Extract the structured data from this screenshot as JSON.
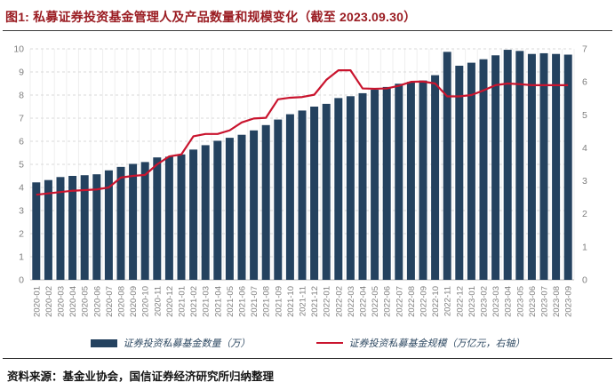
{
  "header": {
    "title": "图1: 私募证券投资基金管理人及产品数量和规模变化（截至 2023.09.30）"
  },
  "footer": {
    "source": "资料来源：基金业协会，国信证券经济研究所归纳整理"
  },
  "legend": {
    "items": [
      {
        "label": "证券投资私募基金数量（万）",
        "type": "bar",
        "color": "#24425f"
      },
      {
        "label": "证券投资私募基金规模（万亿元，右轴）",
        "type": "line",
        "color": "#c9142e"
      }
    ]
  },
  "colors": {
    "bar": "#24425f",
    "line": "#c9142e",
    "title": "#9a1c22",
    "axis_text": "#7f7f7f",
    "grid_h": "#d9d9d9",
    "grid_v": "#efefef",
    "baseline": "#bdbdbd"
  },
  "chart_data": {
    "type": "bar+line combo",
    "title": "私募证券投资基金管理人及产品数量和规模变化（截至 2023.09.30）",
    "grid": "horizontal dashed + faint vertical",
    "legend_position": "bottom",
    "categories": [
      "2020-01",
      "2020-02",
      "2020-03",
      "2020-04",
      "2020-05",
      "2020-06",
      "2020-07",
      "2020-08",
      "2020-09",
      "2020-10",
      "2020-11",
      "2020-12",
      "2021-01",
      "2021-02",
      "2021-03",
      "2021-04",
      "2021-05",
      "2021-06",
      "2021-07",
      "2021-08",
      "2021-09",
      "2021-10",
      "2021-11",
      "2021-12",
      "2022-01",
      "2022-02",
      "2022-03",
      "2022-04",
      "2022-05",
      "2022-06",
      "2022-07",
      "2022-08",
      "2022-09",
      "2022-10",
      "2022-11",
      "2022-12",
      "2023-01",
      "2023-02",
      "2023-03",
      "2023-04",
      "2023-05",
      "2023-06",
      "2023-07",
      "2023-08",
      "2023-09"
    ],
    "left_axis": {
      "min": 0,
      "max": 10,
      "step": 1,
      "ticks": [
        0,
        1,
        2,
        3,
        4,
        5,
        6,
        7,
        8,
        9,
        10
      ]
    },
    "right_axis": {
      "min": 0,
      "max": 7,
      "step": 1,
      "ticks": [
        0,
        1,
        2,
        3,
        4,
        5,
        6,
        7
      ]
    },
    "series": [
      {
        "name": "证券投资私募基金数量（万）",
        "type": "bar",
        "axis": "left",
        "color": "#24425f",
        "values": [
          4.22,
          4.32,
          4.45,
          4.5,
          4.53,
          4.57,
          4.74,
          4.89,
          5.02,
          5.1,
          5.3,
          5.33,
          5.43,
          5.64,
          5.83,
          6.02,
          6.15,
          6.28,
          6.47,
          6.7,
          6.94,
          7.17,
          7.33,
          7.5,
          7.62,
          7.87,
          7.95,
          8.08,
          8.23,
          8.35,
          8.49,
          8.57,
          8.63,
          8.86,
          9.87,
          9.27,
          9.4,
          9.55,
          9.72,
          9.96,
          9.91,
          9.78,
          9.81,
          9.78,
          9.75
        ]
      },
      {
        "name": "证券投资私募基金规模（万亿元，右轴）",
        "type": "line",
        "axis": "right",
        "color": "#c9142e",
        "values": [
          2.58,
          2.62,
          2.66,
          2.7,
          2.72,
          2.74,
          2.8,
          3.1,
          3.15,
          3.18,
          3.5,
          3.74,
          3.8,
          4.35,
          4.42,
          4.42,
          4.53,
          4.77,
          4.89,
          4.91,
          5.47,
          5.52,
          5.54,
          5.61,
          6.06,
          6.35,
          6.35,
          5.8,
          5.79,
          5.8,
          5.88,
          6.0,
          6.01,
          5.95,
          5.56,
          5.56,
          5.6,
          5.74,
          5.9,
          5.95,
          5.93,
          5.9,
          5.9,
          5.9,
          5.9
        ]
      }
    ]
  }
}
